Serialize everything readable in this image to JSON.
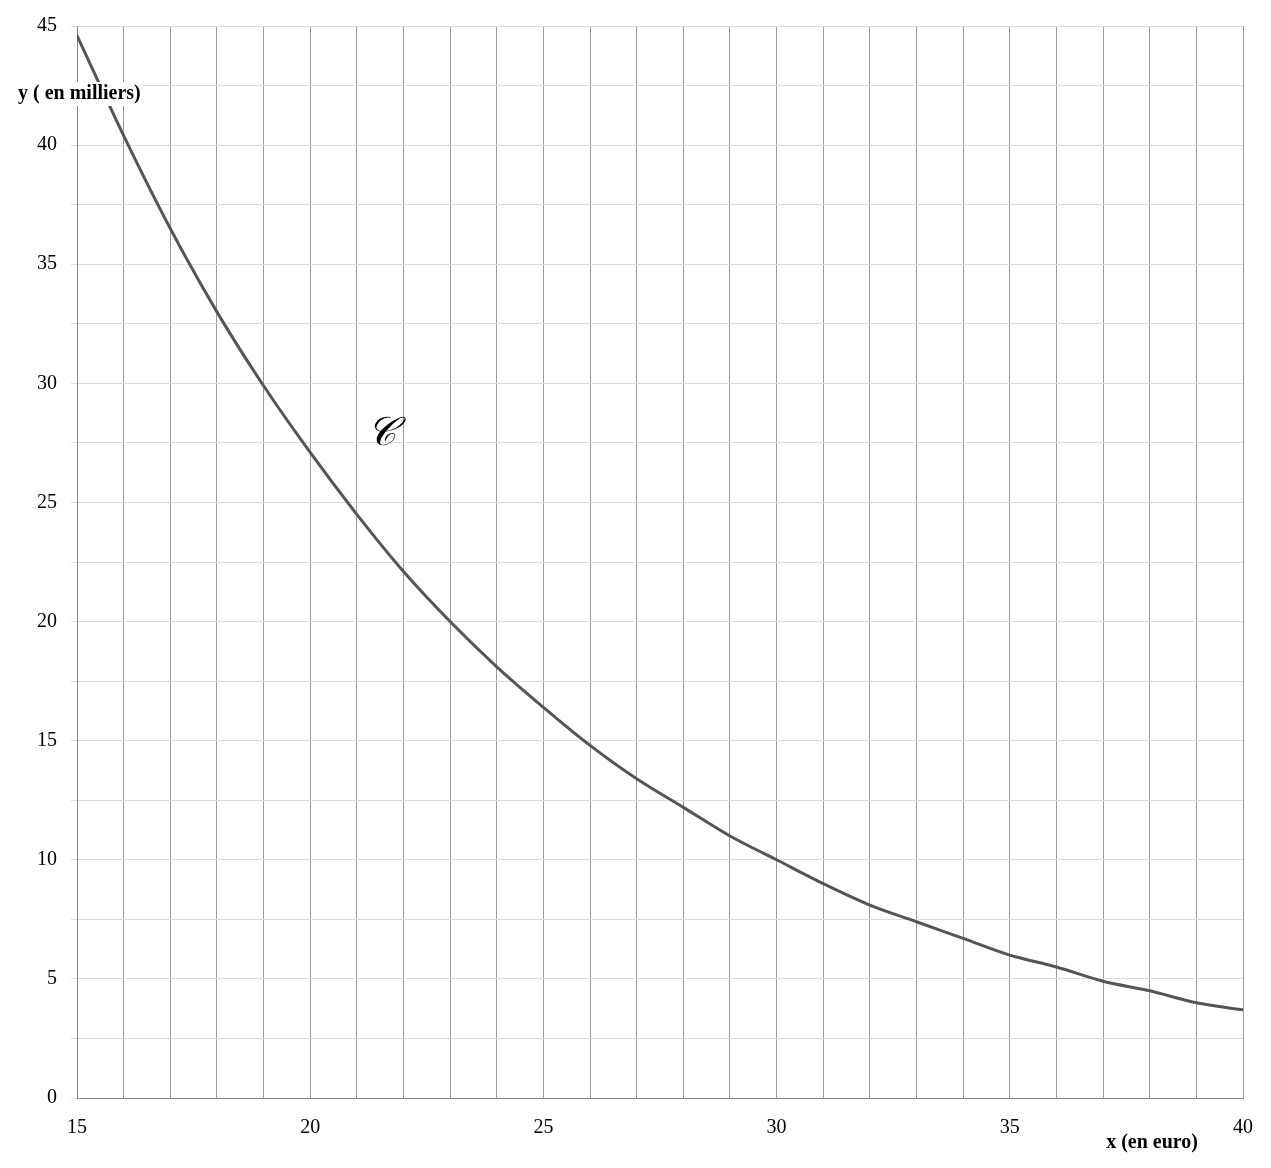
{
  "chart_data": {
    "type": "line",
    "xlabel": "x (en euro)",
    "ylabel": "y ( en milliers)",
    "x": [
      15,
      16,
      17,
      18,
      19,
      20,
      21,
      22,
      23,
      24,
      25,
      26,
      27,
      28,
      29,
      30,
      31,
      32,
      33,
      34,
      35,
      36,
      37,
      38,
      39,
      40
    ],
    "series": [
      {
        "name": "𝒞",
        "color": "#555555",
        "values": [
          44.6,
          40.4,
          36.5,
          33.0,
          29.9,
          27.1,
          24.5,
          22.1,
          20.0,
          18.1,
          16.4,
          14.8,
          13.4,
          12.2,
          11.0,
          10.0,
          9.0,
          8.1,
          7.4,
          6.7,
          6.0,
          5.5,
          4.9,
          4.5,
          4.0,
          3.7
        ]
      }
    ],
    "xlim": [
      15,
      40
    ],
    "ylim": [
      0,
      45
    ],
    "xticks": [
      15,
      {
        "value": 16,
        "label": null
      },
      {
        "value": 17,
        "label": null
      },
      {
        "value": 18,
        "label": null
      },
      {
        "value": 19,
        "label": null
      },
      20,
      {
        "value": 21,
        "label": null
      },
      {
        "value": 22,
        "label": null
      },
      {
        "value": 23,
        "label": null
      },
      {
        "value": 24,
        "label": null
      },
      25,
      {
        "value": 26,
        "label": null
      },
      {
        "value": 27,
        "label": null
      },
      {
        "value": 28,
        "label": null
      },
      {
        "value": 29,
        "label": null
      },
      30,
      {
        "value": 31,
        "label": null
      },
      {
        "value": 32,
        "label": null
      },
      {
        "value": 33,
        "label": null
      },
      {
        "value": 34,
        "label": null
      },
      35,
      {
        "value": 36,
        "label": null
      },
      {
        "value": 37,
        "label": null
      },
      {
        "value": 38,
        "label": null
      },
      {
        "value": 39,
        "label": null
      },
      40
    ],
    "yticks": [
      0,
      {
        "value": 2.5,
        "label": null
      },
      5,
      {
        "value": 7.5,
        "label": null
      },
      10,
      {
        "value": 12.5,
        "label": null
      },
      15,
      {
        "value": 17.5,
        "label": null
      },
      20,
      {
        "value": 22.5,
        "label": null
      },
      25,
      {
        "value": 27.5,
        "label": null
      },
      30,
      {
        "value": 32.5,
        "label": null
      },
      35,
      {
        "value": 37.5,
        "label": null
      },
      40,
      {
        "value": 42.5,
        "label": null
      },
      45
    ],
    "grid": true,
    "legend": false,
    "marker": "none",
    "line_style": "solid"
  }
}
